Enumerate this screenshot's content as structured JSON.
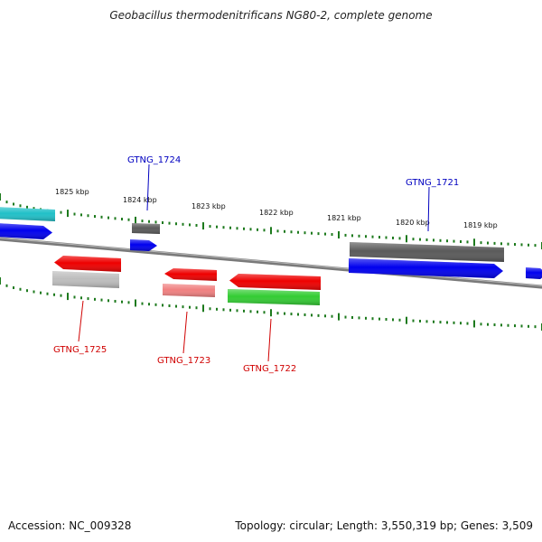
{
  "title": "Geobacillus thermodenitrificans NG80-2, complete genome",
  "footer": {
    "accession": "Accession: NC_009328",
    "topology": "Topology: circular; Length: 3,550,319 bp; Genes: 3,509"
  },
  "colors": {
    "backbone": "#808080",
    "ticks": "#1d7a1d",
    "forward_label": "#0000c0",
    "reverse_label": "#d00000",
    "blue": "#0000ee",
    "cyan": "#20c0c8",
    "red": "#ee0000",
    "pink": "#f08080",
    "gray_dark": "#5a5a5a",
    "gray_light": "#bdbdbd",
    "green": "#33cc33"
  },
  "scale": {
    "ticks": [
      {
        "label": "1825 kbp"
      },
      {
        "label": "1824 kbp"
      },
      {
        "label": "1823 kbp"
      },
      {
        "label": "1822 kbp"
      },
      {
        "label": "1821 kbp"
      },
      {
        "label": "1820 kbp"
      },
      {
        "label": "1819 kbp"
      }
    ]
  },
  "gene_labels": {
    "forward": [
      {
        "name": "GTNG_1724"
      },
      {
        "name": "GTNG_1721"
      }
    ],
    "reverse": [
      {
        "name": "GTNG_1725"
      },
      {
        "name": "GTNG_1723"
      },
      {
        "name": "GTNG_1722"
      }
    ]
  },
  "features": [
    {
      "id": "fwd-cyan-partial",
      "color": "cyan"
    },
    {
      "id": "fwd-blue-partial",
      "color": "blue"
    },
    {
      "id": "fwd-gray-1724",
      "color": "gray_dark"
    },
    {
      "id": "fwd-blue-1724",
      "color": "blue"
    },
    {
      "id": "fwd-gray-1721",
      "color": "gray_dark"
    },
    {
      "id": "fwd-blue-1721",
      "color": "blue"
    },
    {
      "id": "fwd-blue-edge",
      "color": "blue"
    },
    {
      "id": "rev-red-1725",
      "color": "red"
    },
    {
      "id": "rev-gray-1725",
      "color": "gray_light"
    },
    {
      "id": "rev-red-1723",
      "color": "red"
    },
    {
      "id": "rev-pink-1723",
      "color": "pink"
    },
    {
      "id": "rev-red-1722",
      "color": "red"
    },
    {
      "id": "rev-green-1722",
      "color": "green"
    }
  ]
}
